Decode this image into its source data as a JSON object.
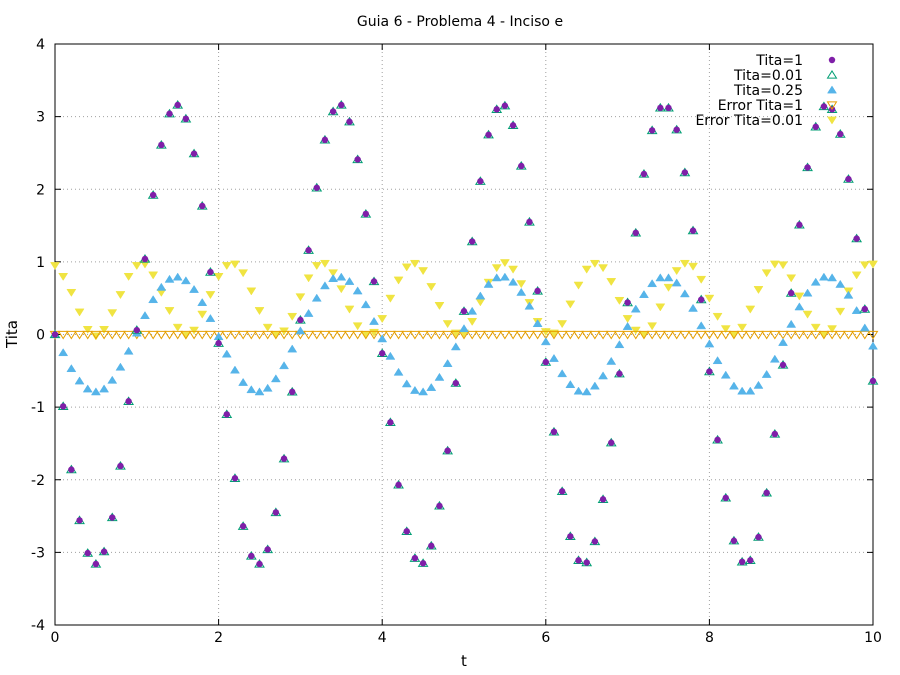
{
  "chart_data": {
    "type": "scatter",
    "title": "Guia 6 - Problema 4 - Inciso e",
    "xlabel": "t",
    "ylabel": "Tita",
    "xlim": [
      0,
      10
    ],
    "ylim": [
      -4,
      4
    ],
    "xticks": [
      "0",
      "2",
      "4",
      "6",
      "8",
      "10"
    ],
    "yticks": [
      "-4",
      "-3",
      "-2",
      "-1",
      "0",
      "1",
      "2",
      "3",
      "4"
    ],
    "grid": true,
    "legend_position": "top-right",
    "series": [
      {
        "name": "Tita=1",
        "marker": "filled-circle",
        "color": "#7f1fa8",
        "x": [
          0,
          0.1,
          0.2,
          0.3,
          0.4,
          0.5,
          0.6,
          0.7,
          0.8,
          0.9,
          1.0,
          1.1,
          1.2,
          1.3,
          1.4,
          1.5,
          1.6,
          1.7,
          1.8,
          1.9,
          2.0,
          2.1,
          2.2,
          2.3,
          2.4,
          2.5,
          2.6,
          2.7,
          2.8,
          2.9,
          3.0,
          3.1,
          3.2,
          3.3,
          3.4,
          3.5,
          3.6,
          3.7,
          3.8,
          3.9,
          4.0,
          4.1,
          4.2,
          4.3,
          4.4,
          4.5,
          4.6,
          4.7,
          4.8,
          4.9,
          5.0,
          5.1,
          5.2,
          5.3,
          5.4,
          5.5,
          5.6,
          5.7,
          5.8,
          5.9,
          6.0,
          6.1,
          6.2,
          6.3,
          6.4,
          6.5,
          6.6,
          6.7,
          6.8,
          6.9,
          7.0,
          7.1,
          7.2,
          7.3,
          7.4,
          7.5,
          7.6,
          7.7,
          7.8,
          7.9,
          8.0,
          8.1,
          8.2,
          8.3,
          8.4,
          8.5,
          8.6,
          8.7,
          8.8,
          8.9,
          9.0,
          9.1,
          9.2,
          9.3,
          9.4,
          9.5,
          9.6,
          9.7,
          9.8,
          9.9,
          10.0
        ],
        "y": [
          0,
          -0.99,
          -1.86,
          -2.56,
          -3.01,
          -3.16,
          -2.99,
          -2.52,
          -1.81,
          -0.92,
          0.06,
          1.04,
          1.92,
          2.61,
          3.04,
          3.16,
          2.97,
          2.49,
          1.77,
          0.86,
          -0.12,
          -1.1,
          -1.98,
          -2.64,
          -3.05,
          -3.16,
          -2.96,
          -2.45,
          -1.71,
          -0.79,
          0.2,
          1.16,
          2.02,
          2.68,
          3.07,
          3.16,
          2.93,
          2.41,
          1.66,
          0.73,
          -0.26,
          -1.21,
          -2.07,
          -2.71,
          -3.08,
          -3.15,
          -2.91,
          -2.36,
          -1.6,
          -0.67,
          0.32,
          1.28,
          2.11,
          2.75,
          3.1,
          3.15,
          2.88,
          2.32,
          1.55,
          0.6,
          -0.38,
          -1.34,
          -2.16,
          -2.78,
          -3.11,
          -3.14,
          -2.85,
          -2.27,
          -1.49,
          -0.54,
          0.44,
          1.4,
          2.21,
          2.81,
          3.12,
          3.12,
          2.82,
          2.23,
          1.43,
          0.48,
          -0.51,
          -1.45,
          -2.25,
          -2.84,
          -3.13,
          -3.11,
          -2.79,
          -2.18,
          -1.37,
          -0.42,
          0.57,
          1.51,
          2.3,
          2.86,
          3.14,
          3.1,
          2.76,
          2.14,
          1.32,
          0.35,
          -0.64
        ]
      },
      {
        "name": "Tita=0.01",
        "marker": "hollow-triangle",
        "color": "#009e73",
        "x": [
          0,
          0.1,
          0.2,
          0.3,
          0.4,
          0.5,
          0.6,
          0.7,
          0.8,
          0.9,
          1.0,
          1.1,
          1.2,
          1.3,
          1.4,
          1.5,
          1.6,
          1.7,
          1.8,
          1.9,
          2.0,
          2.1,
          2.2,
          2.3,
          2.4,
          2.5,
          2.6,
          2.7,
          2.8,
          2.9,
          3.0,
          3.1,
          3.2,
          3.3,
          3.4,
          3.5,
          3.6,
          3.7,
          3.8,
          3.9,
          4.0,
          4.1,
          4.2,
          4.3,
          4.4,
          4.5,
          4.6,
          4.7,
          4.8,
          4.9,
          5.0,
          5.1,
          5.2,
          5.3,
          5.4,
          5.5,
          5.6,
          5.7,
          5.8,
          5.9,
          6.0,
          6.1,
          6.2,
          6.3,
          6.4,
          6.5,
          6.6,
          6.7,
          6.8,
          6.9,
          7.0,
          7.1,
          7.2,
          7.3,
          7.4,
          7.5,
          7.6,
          7.7,
          7.8,
          7.9,
          8.0,
          8.1,
          8.2,
          8.3,
          8.4,
          8.5,
          8.6,
          8.7,
          8.8,
          8.9,
          9.0,
          9.1,
          9.2,
          9.3,
          9.4,
          9.5,
          9.6,
          9.7,
          9.8,
          9.9,
          10.0
        ],
        "y": [
          0,
          -0.99,
          -1.86,
          -2.56,
          -3.01,
          -3.16,
          -2.99,
          -2.52,
          -1.81,
          -0.92,
          0.06,
          1.04,
          1.92,
          2.61,
          3.04,
          3.16,
          2.97,
          2.49,
          1.77,
          0.86,
          -0.12,
          -1.1,
          -1.98,
          -2.64,
          -3.05,
          -3.16,
          -2.96,
          -2.45,
          -1.71,
          -0.79,
          0.2,
          1.16,
          2.02,
          2.68,
          3.07,
          3.16,
          2.93,
          2.41,
          1.66,
          0.73,
          -0.26,
          -1.21,
          -2.07,
          -2.71,
          -3.08,
          -3.15,
          -2.91,
          -2.36,
          -1.6,
          -0.67,
          0.32,
          1.28,
          2.11,
          2.75,
          3.1,
          3.15,
          2.88,
          2.32,
          1.55,
          0.6,
          -0.38,
          -1.34,
          -2.16,
          -2.78,
          -3.11,
          -3.14,
          -2.85,
          -2.27,
          -1.49,
          -0.54,
          0.44,
          1.4,
          2.21,
          2.81,
          3.12,
          3.12,
          2.82,
          2.23,
          1.43,
          0.48,
          -0.51,
          -1.45,
          -2.25,
          -2.84,
          -3.13,
          -3.11,
          -2.79,
          -2.18,
          -1.37,
          -0.42,
          0.57,
          1.51,
          2.3,
          2.86,
          3.14,
          3.1,
          2.76,
          2.14,
          1.32,
          0.35,
          -0.64
        ]
      },
      {
        "name": "Tita=0.25",
        "marker": "filled-triangle",
        "color": "#56b4e9",
        "x": [
          0,
          0.1,
          0.2,
          0.3,
          0.4,
          0.5,
          0.6,
          0.7,
          0.8,
          0.9,
          1.0,
          1.1,
          1.2,
          1.3,
          1.4,
          1.5,
          1.6,
          1.7,
          1.8,
          1.9,
          2.0,
          2.1,
          2.2,
          2.3,
          2.4,
          2.5,
          2.6,
          2.7,
          2.8,
          2.9,
          3.0,
          3.1,
          3.2,
          3.3,
          3.4,
          3.5,
          3.6,
          3.7,
          3.8,
          3.9,
          4.0,
          4.1,
          4.2,
          4.3,
          4.4,
          4.5,
          4.6,
          4.7,
          4.8,
          4.9,
          5.0,
          5.1,
          5.2,
          5.3,
          5.4,
          5.5,
          5.6,
          5.7,
          5.8,
          5.9,
          6.0,
          6.1,
          6.2,
          6.3,
          6.4,
          6.5,
          6.6,
          6.7,
          6.8,
          6.9,
          7.0,
          7.1,
          7.2,
          7.3,
          7.4,
          7.5,
          7.6,
          7.7,
          7.8,
          7.9,
          8.0,
          8.1,
          8.2,
          8.3,
          8.4,
          8.5,
          8.6,
          8.7,
          8.8,
          8.9,
          9.0,
          9.1,
          9.2,
          9.3,
          9.4,
          9.5,
          9.6,
          9.7,
          9.8,
          9.9,
          10.0
        ],
        "y": [
          0,
          -0.25,
          -0.47,
          -0.64,
          -0.75,
          -0.79,
          -0.75,
          -0.63,
          -0.45,
          -0.23,
          0.02,
          0.26,
          0.48,
          0.65,
          0.76,
          0.79,
          0.74,
          0.62,
          0.44,
          0.22,
          -0.03,
          -0.27,
          -0.49,
          -0.66,
          -0.76,
          -0.79,
          -0.74,
          -0.61,
          -0.43,
          -0.2,
          0.05,
          0.29,
          0.5,
          0.67,
          0.77,
          0.79,
          0.73,
          0.6,
          0.41,
          0.18,
          -0.06,
          -0.3,
          -0.52,
          -0.68,
          -0.77,
          -0.79,
          -0.73,
          -0.59,
          -0.4,
          -0.17,
          0.08,
          0.32,
          0.53,
          0.69,
          0.78,
          0.79,
          0.72,
          0.58,
          0.39,
          0.15,
          -0.1,
          -0.33,
          -0.54,
          -0.69,
          -0.78,
          -0.79,
          -0.71,
          -0.57,
          -0.37,
          -0.14,
          0.11,
          0.35,
          0.55,
          0.7,
          0.78,
          0.78,
          0.71,
          0.56,
          0.36,
          0.12,
          -0.13,
          -0.36,
          -0.56,
          -0.71,
          -0.78,
          -0.78,
          -0.7,
          -0.55,
          -0.34,
          -0.11,
          0.14,
          0.38,
          0.57,
          0.72,
          0.79,
          0.78,
          0.69,
          0.54,
          0.33,
          0.09,
          -0.16
        ]
      },
      {
        "name": "Error Tita=1",
        "marker": "hollow-down-triangle",
        "color": "#e69f00",
        "x": [
          0,
          0.1,
          0.2,
          0.3,
          0.4,
          0.5,
          0.6,
          0.7,
          0.8,
          0.9,
          1.0,
          1.1,
          1.2,
          1.3,
          1.4,
          1.5,
          1.6,
          1.7,
          1.8,
          1.9,
          2.0,
          2.1,
          2.2,
          2.3,
          2.4,
          2.5,
          2.6,
          2.7,
          2.8,
          2.9,
          3.0,
          3.1,
          3.2,
          3.3,
          3.4,
          3.5,
          3.6,
          3.7,
          3.8,
          3.9,
          4.0,
          4.1,
          4.2,
          4.3,
          4.4,
          4.5,
          4.6,
          4.7,
          4.8,
          4.9,
          5.0,
          5.1,
          5.2,
          5.3,
          5.4,
          5.5,
          5.6,
          5.7,
          5.8,
          5.9,
          6.0,
          6.1,
          6.2,
          6.3,
          6.4,
          6.5,
          6.6,
          6.7,
          6.8,
          6.9,
          7.0,
          7.1,
          7.2,
          7.3,
          7.4,
          7.5,
          7.6,
          7.7,
          7.8,
          7.9,
          8.0,
          8.1,
          8.2,
          8.3,
          8.4,
          8.5,
          8.6,
          8.7,
          8.8,
          8.9,
          9.0,
          9.1,
          9.2,
          9.3,
          9.4,
          9.5,
          9.6,
          9.7,
          9.8,
          9.9,
          10.0
        ],
        "y": [
          0,
          0,
          0,
          0,
          0,
          0,
          0,
          0,
          0,
          0,
          0,
          0,
          0,
          0,
          0,
          0,
          0,
          0,
          0,
          0,
          0,
          0,
          0,
          0,
          0,
          0,
          0,
          0,
          0,
          0,
          0,
          0,
          0,
          0,
          0,
          0,
          0,
          0,
          0,
          0,
          0,
          0,
          0,
          0,
          0,
          0,
          0,
          0,
          0,
          0,
          0,
          0,
          0,
          0,
          0,
          0,
          0,
          0,
          0,
          0,
          0,
          0,
          0,
          0,
          0,
          0,
          0,
          0,
          0,
          0,
          0,
          0,
          0,
          0,
          0,
          0,
          0,
          0,
          0,
          0,
          0,
          0,
          0,
          0,
          0,
          0,
          0,
          0,
          0,
          0,
          0,
          0,
          0,
          0,
          0,
          0,
          0,
          0,
          0,
          0,
          0
        ]
      },
      {
        "name": "Error Tita=0.01",
        "marker": "filled-down-triangle",
        "color": "#f0e442",
        "x": [
          0,
          0.1,
          0.2,
          0.3,
          0.4,
          0.5,
          0.6,
          0.7,
          0.8,
          0.9,
          1.0,
          1.1,
          1.2,
          1.3,
          1.4,
          1.5,
          1.6,
          1.7,
          1.8,
          1.9,
          2.0,
          2.1,
          2.2,
          2.3,
          2.4,
          2.5,
          2.6,
          2.7,
          2.8,
          2.9,
          3.0,
          3.1,
          3.2,
          3.3,
          3.4,
          3.5,
          3.6,
          3.7,
          3.8,
          3.9,
          4.0,
          4.1,
          4.2,
          4.3,
          4.4,
          4.5,
          4.6,
          4.7,
          4.8,
          4.9,
          5.0,
          5.1,
          5.2,
          5.3,
          5.4,
          5.5,
          5.6,
          5.7,
          5.8,
          5.9,
          6.0,
          6.1,
          6.2,
          6.3,
          6.4,
          6.5,
          6.6,
          6.7,
          6.8,
          6.9,
          7.0,
          7.1,
          7.2,
          7.3,
          7.4,
          7.5,
          7.6,
          7.7,
          7.8,
          7.9,
          8.0,
          8.1,
          8.2,
          8.3,
          8.4,
          8.5,
          8.6,
          8.7,
          8.8,
          8.9,
          9.0,
          9.1,
          9.2,
          9.3,
          9.4,
          9.5,
          9.6,
          9.7,
          9.8,
          9.9,
          10.0
        ],
        "y": [
          0.95,
          0.8,
          0.58,
          0.31,
          0.07,
          -0.02,
          0.07,
          0.3,
          0.55,
          0.8,
          0.95,
          0.97,
          0.82,
          0.58,
          0.33,
          0.1,
          -0.01,
          0.06,
          0.28,
          0.55,
          0.8,
          0.95,
          0.97,
          0.85,
          0.6,
          0.33,
          0.1,
          0.0,
          0.05,
          0.25,
          0.52,
          0.78,
          0.95,
          0.98,
          0.85,
          0.63,
          0.35,
          0.12,
          0.0,
          0.03,
          0.22,
          0.5,
          0.75,
          0.93,
          0.98,
          0.88,
          0.66,
          0.4,
          0.15,
          0.02,
          0.02,
          0.18,
          0.45,
          0.72,
          0.92,
          0.99,
          0.9,
          0.7,
          0.44,
          0.18,
          0.04,
          0.02,
          0.15,
          0.42,
          0.68,
          0.9,
          0.98,
          0.92,
          0.73,
          0.47,
          0.22,
          0.06,
          0.0,
          0.12,
          0.38,
          0.65,
          0.88,
          0.98,
          0.94,
          0.76,
          0.5,
          0.25,
          0.08,
          0.0,
          0.1,
          0.35,
          0.62,
          0.85,
          0.97,
          0.96,
          0.78,
          0.53,
          0.28,
          0.1,
          0.0,
          0.08,
          0.32,
          0.6,
          0.82,
          0.96,
          0.97
        ]
      }
    ]
  }
}
